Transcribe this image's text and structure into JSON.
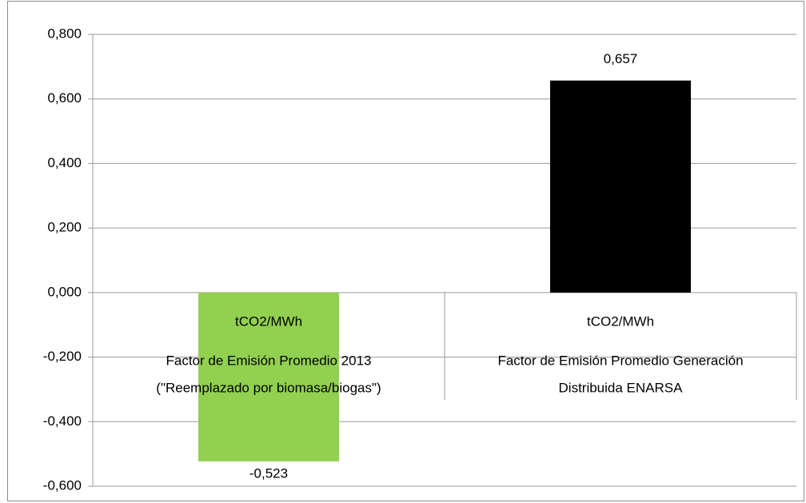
{
  "chart_data": {
    "type": "bar",
    "categories": [
      "tCO2/MWh",
      "tCO2/MWh"
    ],
    "category_groups": [
      [
        "Factor de Emisión Promedio 2013",
        "(\"Reemplazado por biomasa/biogas\")"
      ],
      [
        "Factor de Emisión Promedio Generación",
        "Distribuida ENARSA"
      ]
    ],
    "values": [
      -0.523,
      0.657
    ],
    "value_labels": [
      "-0,523",
      "0,657"
    ],
    "colors": [
      "#92d050",
      "#000000"
    ],
    "ylim": [
      -0.6,
      0.8
    ],
    "yticks": [
      {
        "value": -0.6,
        "label": "-0,600"
      },
      {
        "value": -0.4,
        "label": "-0,400"
      },
      {
        "value": -0.2,
        "label": "-0,200"
      },
      {
        "value": 0,
        "label": "0,000"
      },
      {
        "value": 0.2,
        "label": "0,200"
      },
      {
        "value": 0.4,
        "label": "0,400"
      },
      {
        "value": 0.6,
        "label": "0,600"
      },
      {
        "value": 0.8,
        "label": "0,800"
      }
    ],
    "grid": true
  }
}
